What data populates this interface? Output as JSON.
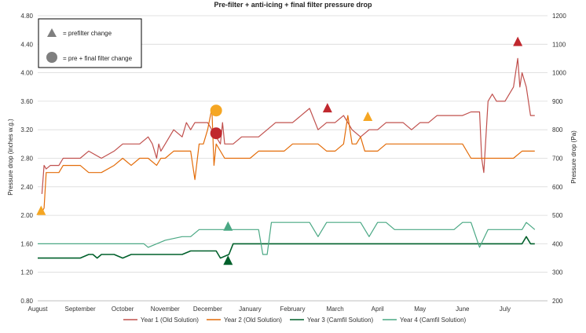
{
  "chart_data": {
    "type": "line",
    "title": "Pre-filter + anti-icing + final filter pressure drop",
    "ylabel": "Pressure drop (inches w.g.)",
    "y2label": "Pressure drop (Pa)",
    "ylim": [
      0.8,
      4.8
    ],
    "y2lim": [
      200,
      1200
    ],
    "yticks": [
      "0.80",
      "1.20",
      "1.60",
      "2.00",
      "2.40",
      "2.80",
      "3.20",
      "3.60",
      "4.00",
      "4.40",
      "4.80"
    ],
    "y2ticks": [
      "200",
      "300",
      "400",
      "500",
      "600",
      "700",
      "800",
      "900",
      "1000",
      "1100",
      "1200"
    ],
    "xlim": [
      0,
      12
    ],
    "categories": [
      "August",
      "September",
      "October",
      "November",
      "December",
      "January",
      "February",
      "March",
      "April",
      "May",
      "June",
      "July"
    ],
    "grid": true,
    "legend_position": "bottom",
    "annotation_legend": {
      "triangle_label": "= prefilter change",
      "circle_label": "= pre + final filter change"
    },
    "colors": {
      "year1": "#c0504d",
      "year2": "#e36c09",
      "year3": "#00602b",
      "year4": "#4aa884",
      "orange_marker": "#f5a623",
      "red_marker": "#c0282e",
      "grey_marker": "#7f7f7f"
    },
    "series": [
      {
        "name": "Year 1 (Old Solution)",
        "color": "#c0504d",
        "x": [
          0.1,
          0.15,
          0.2,
          0.3,
          0.5,
          0.6,
          0.8,
          1.0,
          1.2,
          1.5,
          1.8,
          2.0,
          2.2,
          2.4,
          2.6,
          2.7,
          2.8,
          2.85,
          2.9,
          3.0,
          3.2,
          3.4,
          3.5,
          3.6,
          3.7,
          3.8,
          4.0,
          4.2,
          4.3,
          4.35,
          4.4,
          4.6,
          4.8,
          5.0,
          5.2,
          5.4,
          5.6,
          5.8,
          6.0,
          6.2,
          6.4,
          6.6,
          6.8,
          7.0,
          7.2,
          7.4,
          7.6,
          7.8,
          8.0,
          8.2,
          8.4,
          8.6,
          8.8,
          9.0,
          9.2,
          9.4,
          9.6,
          9.8,
          10.0,
          10.2,
          10.4,
          10.45,
          10.5,
          10.6,
          10.7,
          10.8,
          10.9,
          11.0,
          11.2,
          11.3,
          11.35,
          11.4,
          11.5,
          11.6,
          11.7
        ],
        "values": [
          2.3,
          2.7,
          2.65,
          2.7,
          2.7,
          2.8,
          2.8,
          2.8,
          2.9,
          2.8,
          2.9,
          3.0,
          3.0,
          3.0,
          3.1,
          3.0,
          2.8,
          3.0,
          2.9,
          3.0,
          3.2,
          3.1,
          3.3,
          3.2,
          3.3,
          3.3,
          3.3,
          3.1,
          3.0,
          3.3,
          3.0,
          3.0,
          3.1,
          3.1,
          3.1,
          3.2,
          3.3,
          3.3,
          3.3,
          3.4,
          3.5,
          3.2,
          3.3,
          3.3,
          3.4,
          3.2,
          3.1,
          3.2,
          3.2,
          3.3,
          3.3,
          3.3,
          3.2,
          3.3,
          3.3,
          3.4,
          3.4,
          3.4,
          3.4,
          3.45,
          3.45,
          2.8,
          2.6,
          3.6,
          3.7,
          3.6,
          3.6,
          3.6,
          3.8,
          4.2,
          3.8,
          4.0,
          3.8,
          3.4,
          3.4
        ]
      },
      {
        "name": "Year 2 (Old Solution)",
        "color": "#e36c09",
        "x": [
          0.1,
          0.15,
          0.2,
          0.3,
          0.5,
          0.6,
          0.8,
          1.0,
          1.2,
          1.5,
          1.8,
          2.0,
          2.2,
          2.4,
          2.6,
          2.8,
          2.9,
          3.0,
          3.2,
          3.4,
          3.6,
          3.7,
          3.8,
          3.9,
          4.0,
          4.1,
          4.15,
          4.2,
          4.4,
          4.6,
          4.8,
          5.0,
          5.2,
          5.4,
          5.6,
          5.8,
          6.0,
          6.2,
          6.4,
          6.6,
          6.8,
          7.0,
          7.2,
          7.3,
          7.4,
          7.5,
          7.6,
          7.7,
          7.8,
          8.0,
          8.2,
          8.4,
          8.6,
          8.8,
          9.0,
          9.2,
          9.4,
          9.6,
          9.8,
          10.0,
          10.2,
          10.4,
          10.6,
          10.8,
          11.0,
          11.2,
          11.4,
          11.6,
          11.7
        ],
        "values": [
          2.05,
          2.1,
          2.6,
          2.6,
          2.6,
          2.7,
          2.7,
          2.7,
          2.6,
          2.6,
          2.7,
          2.8,
          2.7,
          2.8,
          2.8,
          2.7,
          2.8,
          2.8,
          2.9,
          2.9,
          2.9,
          2.5,
          3.0,
          3.0,
          3.2,
          3.5,
          2.7,
          3.0,
          2.8,
          2.8,
          2.8,
          2.8,
          2.9,
          2.9,
          2.9,
          2.9,
          3.0,
          3.0,
          3.0,
          3.0,
          2.9,
          2.9,
          3.0,
          3.4,
          3.0,
          3.0,
          3.1,
          2.9,
          2.9,
          2.9,
          3.0,
          3.0,
          3.0,
          3.0,
          3.0,
          3.0,
          3.0,
          3.0,
          3.0,
          3.0,
          2.8,
          2.8,
          2.8,
          2.8,
          2.8,
          2.8,
          2.9,
          2.9,
          2.9
        ]
      },
      {
        "name": "Year 3 (Camfil Solution)",
        "color": "#00602b",
        "x": [
          0,
          0.5,
          1.0,
          1.2,
          1.3,
          1.4,
          1.5,
          1.8,
          2.0,
          2.2,
          2.4,
          2.6,
          2.8,
          3.0,
          3.2,
          3.4,
          3.6,
          3.8,
          4.0,
          4.2,
          4.3,
          4.5,
          4.6,
          4.8,
          5.0,
          5.5,
          6.0,
          6.5,
          7.0,
          7.5,
          8.0,
          8.5,
          9.0,
          9.5,
          10.0,
          10.5,
          11.0,
          11.2,
          11.4,
          11.5,
          11.6,
          11.7
        ],
        "values": [
          1.4,
          1.4,
          1.4,
          1.45,
          1.45,
          1.4,
          1.45,
          1.45,
          1.4,
          1.45,
          1.45,
          1.45,
          1.45,
          1.45,
          1.45,
          1.45,
          1.5,
          1.5,
          1.5,
          1.5,
          1.4,
          1.45,
          1.6,
          1.6,
          1.6,
          1.6,
          1.6,
          1.6,
          1.6,
          1.6,
          1.6,
          1.6,
          1.6,
          1.6,
          1.6,
          1.6,
          1.6,
          1.6,
          1.6,
          1.7,
          1.6,
          1.6
        ]
      },
      {
        "name": "Year 4 (Camfil Solution)",
        "color": "#4aa884",
        "x": [
          0,
          0.5,
          1.0,
          1.5,
          2.0,
          2.5,
          2.6,
          3.0,
          3.4,
          3.6,
          3.8,
          4.0,
          4.2,
          4.4,
          4.6,
          4.8,
          5.0,
          5.2,
          5.3,
          5.4,
          5.5,
          5.6,
          5.8,
          6.0,
          6.2,
          6.4,
          6.6,
          6.8,
          7.0,
          7.2,
          7.4,
          7.6,
          7.8,
          8.0,
          8.2,
          8.4,
          8.6,
          8.8,
          9.0,
          9.2,
          9.4,
          9.6,
          9.8,
          10.0,
          10.2,
          10.4,
          10.6,
          10.8,
          11.0,
          11.2,
          11.4,
          11.5,
          11.6,
          11.7
        ],
        "values": [
          1.6,
          1.6,
          1.6,
          1.6,
          1.6,
          1.6,
          1.55,
          1.65,
          1.7,
          1.7,
          1.8,
          1.8,
          1.8,
          1.8,
          1.8,
          1.8,
          1.8,
          1.8,
          1.45,
          1.45,
          1.9,
          1.9,
          1.9,
          1.9,
          1.9,
          1.9,
          1.7,
          1.9,
          1.9,
          1.9,
          1.9,
          1.9,
          1.7,
          1.9,
          1.9,
          1.8,
          1.8,
          1.8,
          1.8,
          1.8,
          1.8,
          1.8,
          1.8,
          1.9,
          1.9,
          1.55,
          1.8,
          1.8,
          1.8,
          1.8,
          1.8,
          1.9,
          1.85,
          1.8
        ]
      }
    ],
    "markers": [
      {
        "shape": "triangle",
        "color_key": "orange_marker",
        "x": 0.08,
        "y": 2.07
      },
      {
        "shape": "circle",
        "color_key": "orange_marker",
        "x": 4.2,
        "y": 3.47
      },
      {
        "shape": "circle",
        "color_key": "red_marker",
        "x": 4.2,
        "y": 3.15
      },
      {
        "shape": "triangle",
        "color_key": "year4",
        "x": 4.48,
        "y": 1.85
      },
      {
        "shape": "triangle",
        "color_key": "year3",
        "x": 4.48,
        "y": 1.37
      },
      {
        "shape": "triangle",
        "color_key": "red_marker",
        "x": 6.82,
        "y": 3.51
      },
      {
        "shape": "triangle",
        "color_key": "orange_marker",
        "x": 7.77,
        "y": 3.39
      },
      {
        "shape": "triangle",
        "color_key": "red_marker",
        "x": 11.3,
        "y": 4.44
      }
    ]
  }
}
